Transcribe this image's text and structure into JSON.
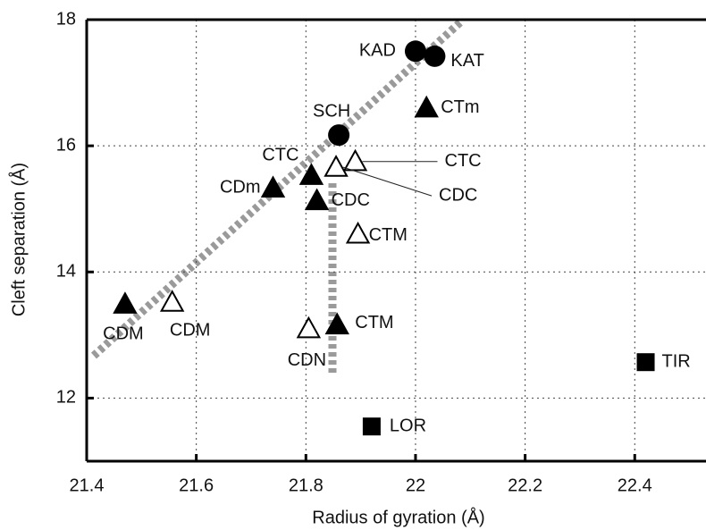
{
  "chart_data": {
    "type": "scatter",
    "xlabel": "Radius of gyration (Å)",
    "ylabel": "Cleft separation (Å)",
    "xlim": [
      21.4,
      22.53
    ],
    "ylim": [
      11,
      18
    ],
    "xticks": [
      21.4,
      21.6,
      21.8,
      22,
      22.2,
      22.4
    ],
    "yticks": [
      12,
      14,
      16,
      18
    ],
    "grid": true,
    "points": [
      {
        "label": "KAD",
        "x": 22.0,
        "y": 17.5,
        "marker": "filled-circle"
      },
      {
        "label": "KAT",
        "x": 22.035,
        "y": 17.42,
        "marker": "filled-circle"
      },
      {
        "label": "CTm",
        "x": 22.02,
        "y": 16.6,
        "marker": "filled-triangle"
      },
      {
        "label": "SCH",
        "x": 21.86,
        "y": 16.17,
        "marker": "filled-circle"
      },
      {
        "label": "CTC",
        "x": 21.81,
        "y": 15.53,
        "marker": "filled-triangle"
      },
      {
        "label": "CDm",
        "x": 21.74,
        "y": 15.33,
        "marker": "filled-triangle"
      },
      {
        "label": "CDC",
        "x": 21.82,
        "y": 15.13,
        "marker": "filled-triangle"
      },
      {
        "label": "CTC",
        "x": 21.89,
        "y": 15.75,
        "marker": "open-triangle"
      },
      {
        "label": "CDC",
        "x": 21.855,
        "y": 15.66,
        "marker": "open-triangle"
      },
      {
        "label": "CTM",
        "x": 21.895,
        "y": 14.6,
        "marker": "open-triangle"
      },
      {
        "label": "CDM",
        "x": 21.47,
        "y": 13.49,
        "marker": "filled-triangle"
      },
      {
        "label": "CDM",
        "x": 21.556,
        "y": 13.52,
        "marker": "open-triangle"
      },
      {
        "label": "CDN",
        "x": 21.805,
        "y": 13.1,
        "marker": "open-triangle"
      },
      {
        "label": "CTM",
        "x": 21.857,
        "y": 13.16,
        "marker": "filled-triangle"
      },
      {
        "label": "LOR",
        "x": 21.92,
        "y": 11.55,
        "marker": "filled-square"
      },
      {
        "label": "TIR",
        "x": 22.42,
        "y": 12.57,
        "marker": "filled-square"
      }
    ]
  }
}
